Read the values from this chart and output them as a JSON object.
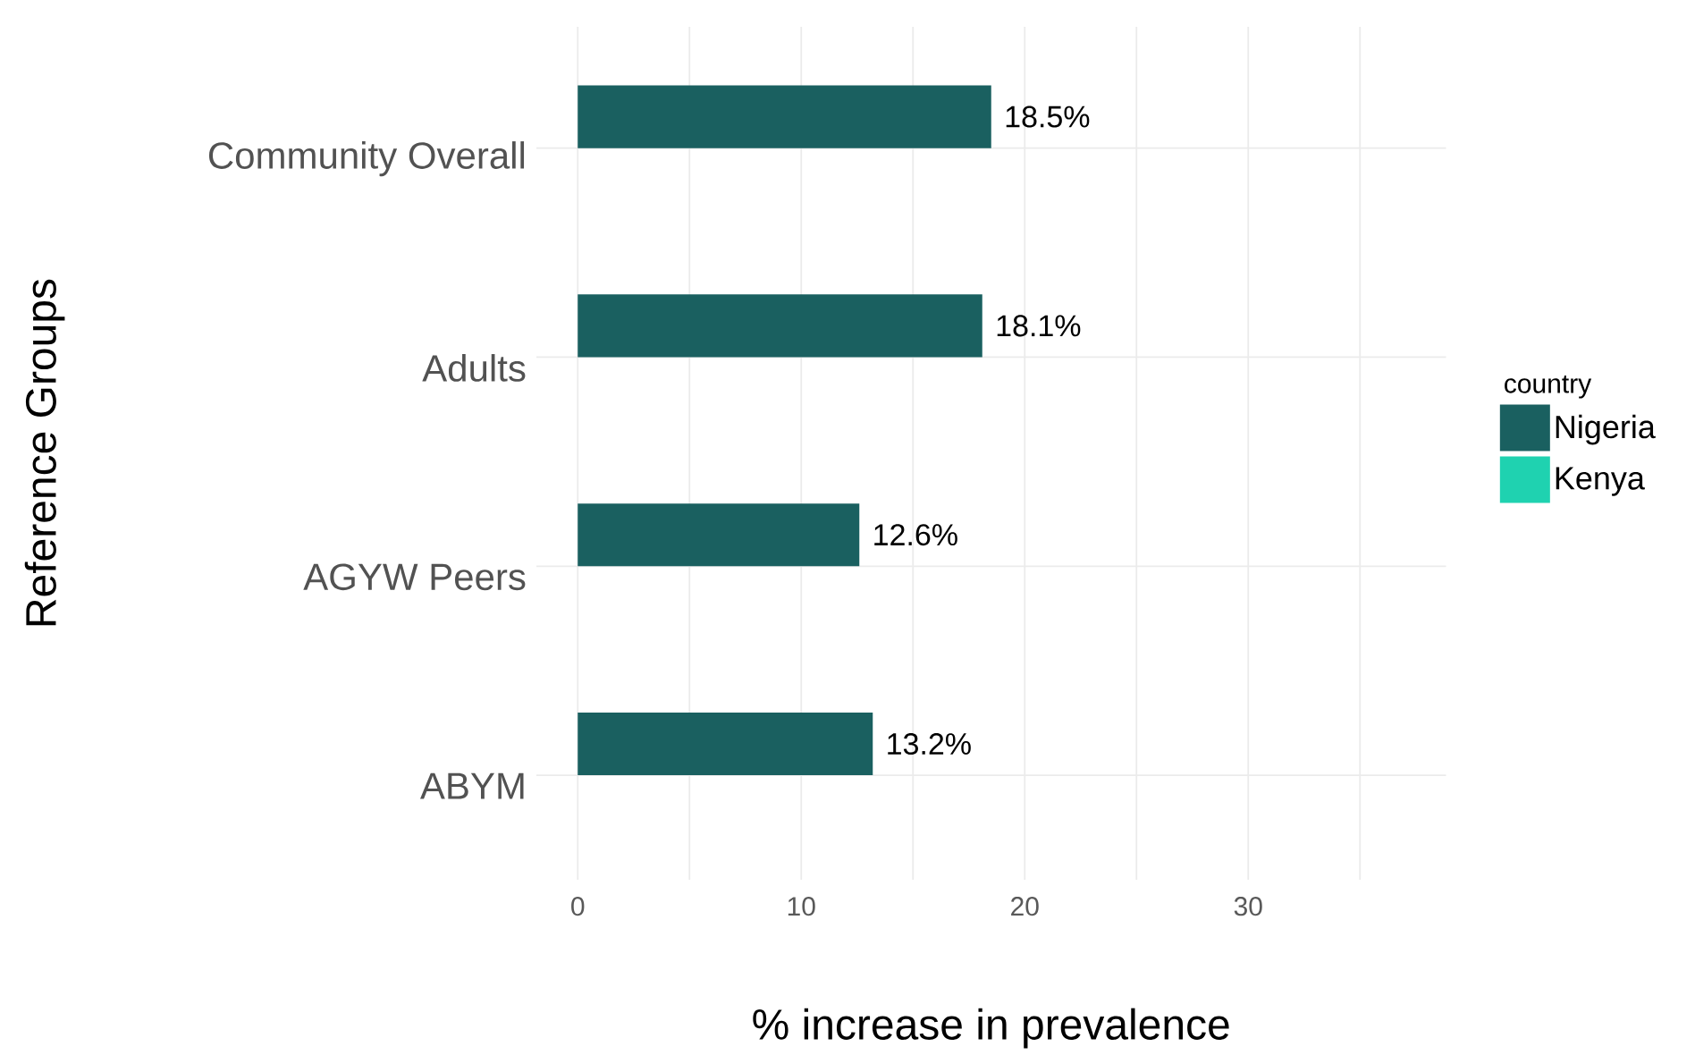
{
  "chart_data": {
    "type": "bar",
    "orientation": "horizontal",
    "xlabel": "% increase in prevalence",
    "ylabel": "Reference Groups",
    "legend_title": "country",
    "categories": [
      "Community Overall",
      "Adults",
      "AGYW Peers",
      "ABYM"
    ],
    "series": [
      {
        "name": "Nigeria",
        "color": "#1a6060",
        "values": [
          18.5,
          18.1,
          12.6,
          13.2
        ],
        "value_labels": [
          "18.5%",
          "18.1%",
          "12.6%",
          "13.2%"
        ]
      },
      {
        "name": "Kenya",
        "color": "#1fd2b0",
        "values": [
          null,
          null,
          null,
          null
        ]
      }
    ],
    "xlim": [
      -1.85,
      38.85
    ],
    "xticks": [
      0,
      10,
      20,
      30,
      {
        "value": 5,
        "label": null
      },
      {
        "value": 15,
        "label": null
      },
      {
        "value": 25,
        "label": null
      },
      {
        "value": 35,
        "label": null
      }
    ],
    "grid": true,
    "legend": "right"
  }
}
